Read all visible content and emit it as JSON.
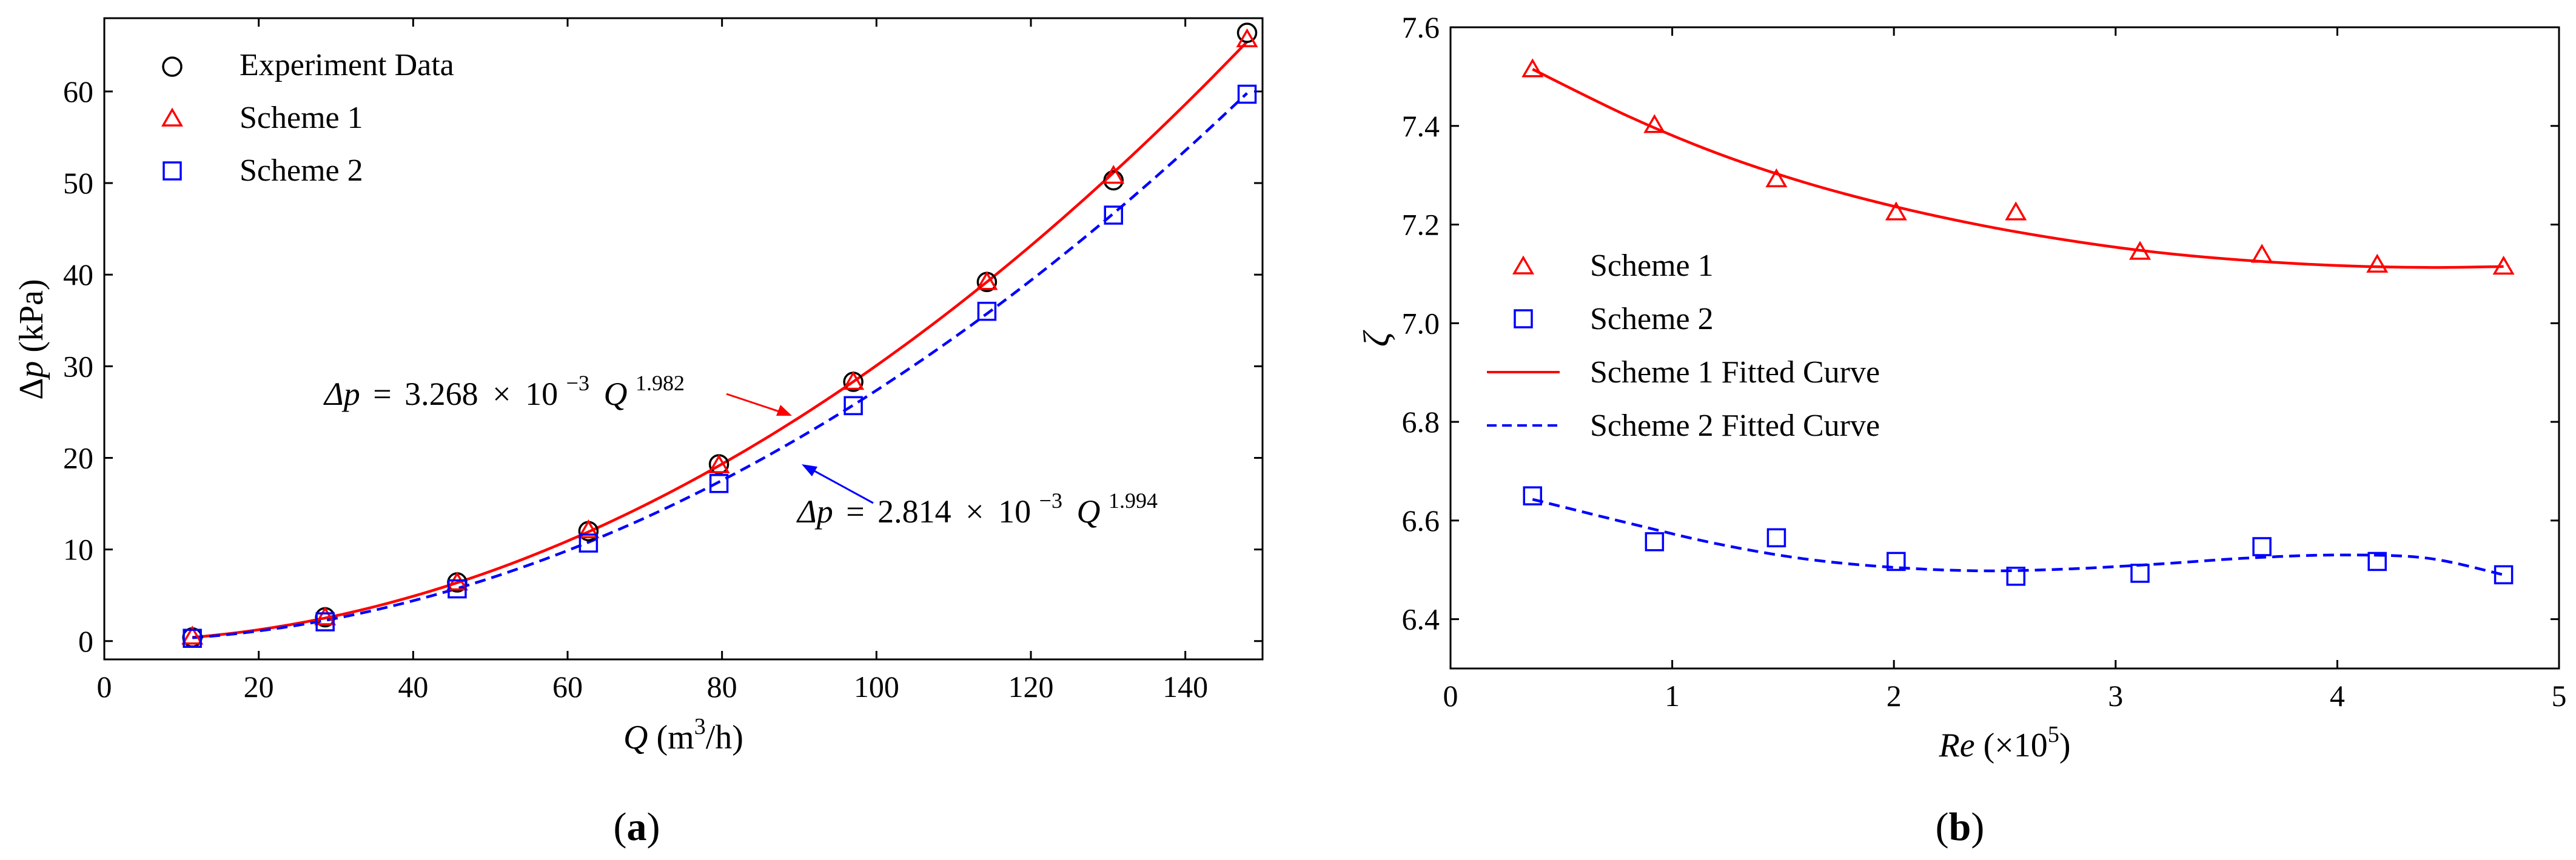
{
  "chart_data": [
    {
      "panel_label": "(a)",
      "type": "line",
      "xlabel": "Q (m³/h)",
      "ylabel": "Δp (kPa)",
      "xlim": [
        0,
        150
      ],
      "ylim": [
        -2,
        68
      ],
      "x_ticks": [
        0,
        20,
        40,
        60,
        80,
        100,
        120,
        140
      ],
      "y_ticks": [
        0,
        10,
        20,
        30,
        40,
        50,
        60
      ],
      "legend_position": "upper-left",
      "series": [
        {
          "name": "Experiment Data",
          "marker": "circle",
          "color": "#000000",
          "x": [
            11.4,
            28.6,
            45.7,
            62.7,
            79.6,
            97.0,
            114.3,
            130.7,
            148.0
          ],
          "y": [
            0.4,
            2.6,
            6.4,
            12.0,
            19.3,
            28.3,
            39.2,
            50.3,
            66.4
          ]
        },
        {
          "name": "Scheme 1",
          "marker": "triangle",
          "color": "#ff0000",
          "x": [
            11.4,
            28.6,
            45.7,
            62.7,
            79.6,
            97.0,
            114.3,
            130.7,
            148.0
          ],
          "y": [
            0.4,
            2.5,
            6.3,
            12.0,
            19.1,
            28.2,
            39.1,
            50.7,
            65.6
          ]
        },
        {
          "name": "Scheme 2",
          "marker": "square",
          "color": "#0000ff",
          "x": [
            11.4,
            28.6,
            45.7,
            62.7,
            79.6,
            97.0,
            114.3,
            130.7,
            148.0
          ],
          "y": [
            0.3,
            2.1,
            5.7,
            10.7,
            17.2,
            25.7,
            36.0,
            46.5,
            59.7
          ]
        }
      ],
      "fits": [
        {
          "name": "Scheme 1 fit",
          "color": "#ff0000",
          "style": "solid",
          "a": 0.003268,
          "b": 1.982,
          "x_range": [
            11.4,
            148.0
          ]
        },
        {
          "name": "Scheme 2 fit",
          "color": "#0000ff",
          "style": "dashed",
          "a": 0.002814,
          "b": 1.994,
          "x_range": [
            11.4,
            148.0
          ]
        }
      ],
      "annotations": [
        {
          "lhs": "Δp",
          "eq": "=",
          "coef": "3.268",
          "times": "×",
          "base": "10",
          "exp": "−3",
          "var": "Q",
          "var_exp": "1.982",
          "color": "#ff0000",
          "arrow_to": [
            90,
            25.0
          ]
        },
        {
          "lhs": "Δp",
          "eq": "=",
          "coef": "2.814",
          "times": "×",
          "base": "10",
          "exp": "−3",
          "var": "Q",
          "var_exp": "1.994",
          "color": "#0000ff",
          "arrow_to": [
            90,
            20.0
          ]
        }
      ]
    },
    {
      "panel_label": "(b)",
      "type": "line",
      "xlabel": "Re (×10⁵)",
      "ylabel": "ζ",
      "xlim": [
        0,
        5
      ],
      "ylim": [
        6.3,
        7.6
      ],
      "x_ticks": [
        0,
        1,
        2,
        3,
        4,
        5
      ],
      "y_ticks": [
        6.4,
        6.6,
        6.8,
        7.0,
        7.2,
        7.4,
        7.6
      ],
      "legend_position": "center-left",
      "series": [
        {
          "name": "Scheme 1",
          "marker": "triangle",
          "color": "#ff0000",
          "x": [
            0.37,
            0.92,
            1.47,
            2.01,
            2.55,
            3.11,
            3.66,
            4.18,
            4.75
          ],
          "y": [
            7.513,
            7.4,
            7.29,
            7.223,
            7.223,
            7.143,
            7.137,
            7.117,
            7.113
          ]
        },
        {
          "name": "Scheme 2",
          "marker": "square",
          "color": "#0000ff",
          "x": [
            0.37,
            0.92,
            1.47,
            2.01,
            2.55,
            3.11,
            3.66,
            4.18,
            4.75
          ],
          "y": [
            6.65,
            6.557,
            6.565,
            6.517,
            6.487,
            6.493,
            6.547,
            6.517,
            6.49
          ]
        },
        {
          "name": "Scheme 1 Fitted Curve",
          "line": "solid",
          "color": "#ff0000",
          "x": [
            0.37,
            0.8,
            1.2,
            1.6,
            2.0,
            2.4,
            2.8,
            3.2,
            3.6,
            4.0,
            4.4,
            4.75
          ],
          "y": [
            7.515,
            7.42,
            7.345,
            7.285,
            7.237,
            7.198,
            7.167,
            7.143,
            7.127,
            7.117,
            7.113,
            7.115
          ]
        },
        {
          "name": "Scheme 2 Fitted Curve",
          "line": "dashed",
          "color": "#0000ff",
          "x": [
            0.37,
            0.8,
            1.2,
            1.6,
            2.0,
            2.4,
            2.8,
            3.2,
            3.6,
            4.0,
            4.4,
            4.75
          ],
          "y": [
            6.643,
            6.595,
            6.553,
            6.522,
            6.505,
            6.498,
            6.502,
            6.512,
            6.524,
            6.53,
            6.524,
            6.49
          ]
        }
      ]
    }
  ]
}
